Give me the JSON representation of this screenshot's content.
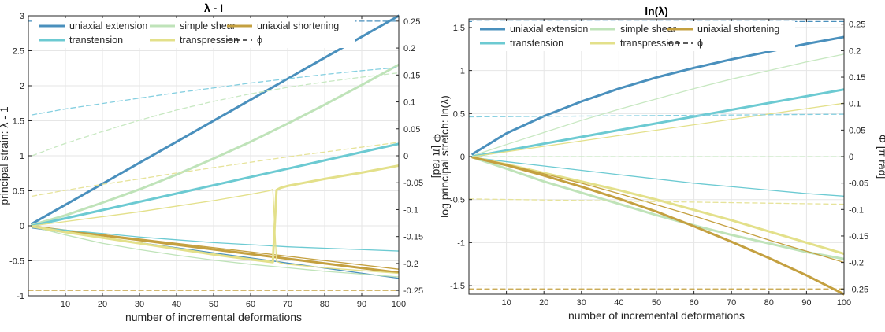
{
  "chart_data": [
    {
      "type": "line",
      "title": "λ - I",
      "xlabel": "number of incremental deformations",
      "ylabel": "principal strain: λ - 1",
      "y2label": "Φ [π rad]",
      "xlim": [
        0,
        100
      ],
      "ylim": [
        -1,
        3
      ],
      "y2lim": [
        -0.26,
        0.26
      ],
      "xticks": [
        10,
        20,
        30,
        40,
        50,
        60,
        70,
        80,
        90,
        100
      ],
      "yticks": [
        -1,
        -0.5,
        0,
        0.5,
        1,
        1.5,
        2,
        2.5,
        3
      ],
      "yticklabels": [
        "-1",
        "-0.5",
        "0",
        "0.5",
        "1",
        "1.5",
        "2",
        "2.5",
        "3"
      ],
      "y2ticks": [
        -0.25,
        -0.2,
        -0.15,
        -0.1,
        -0.05,
        0,
        0.05,
        0.1,
        0.15,
        0.2,
        0.25
      ],
      "y2ticklabels": [
        "-0.25",
        "-0.2",
        "-0.15",
        "-0.1",
        "-0.05",
        "0",
        "0.05",
        "0.1",
        "0.15",
        "0.2",
        "0.25"
      ],
      "grid": true,
      "legend_position": "top",
      "series": [
        {
          "name": "uniaxial extension",
          "color": "#4a90bd",
          "style": "solid",
          "width": 3,
          "axis": "left",
          "x": [
            1,
            100
          ],
          "y": [
            0.03,
            3.0
          ]
        },
        {
          "name": "",
          "color": "#4a90bd",
          "style": "solid",
          "width": 1.3,
          "axis": "left",
          "x": [
            1,
            100
          ],
          "y": [
            -0.03,
            -0.75
          ]
        },
        {
          "name": "simple shear",
          "color": "#bfe3b9",
          "style": "solid",
          "width": 3,
          "axis": "left",
          "x": [
            1,
            10,
            20,
            30,
            40,
            50,
            60,
            70,
            80,
            90,
            100
          ],
          "y": [
            0.01,
            0.15,
            0.33,
            0.52,
            0.73,
            0.96,
            1.2,
            1.46,
            1.73,
            2.01,
            2.3
          ]
        },
        {
          "name": "",
          "color": "#bfe3b9",
          "style": "solid",
          "width": 1.3,
          "axis": "left",
          "x": [
            1,
            10,
            20,
            30,
            40,
            50,
            60,
            70,
            80,
            90,
            100
          ],
          "y": [
            -0.01,
            -0.13,
            -0.25,
            -0.34,
            -0.42,
            -0.49,
            -0.55,
            -0.6,
            -0.65,
            -0.69,
            -0.73
          ]
        },
        {
          "name": "uniaxial shortening",
          "color": "#c4a040",
          "style": "solid",
          "width": 3,
          "axis": "left",
          "x": [
            1,
            100
          ],
          "y": [
            -0.01,
            -0.67
          ]
        },
        {
          "name": "",
          "color": "#c4a040",
          "style": "solid",
          "width": 1.3,
          "axis": "left",
          "x": [
            1,
            100
          ],
          "y": [
            -0.01,
            -0.62
          ]
        },
        {
          "name": "transtension",
          "color": "#6ccad2",
          "style": "solid",
          "width": 3,
          "axis": "left",
          "x": [
            1,
            100
          ],
          "y": [
            0.0,
            1.17
          ]
        },
        {
          "name": "",
          "color": "#6ccad2",
          "style": "solid",
          "width": 1.3,
          "axis": "left",
          "x": [
            1,
            10,
            20,
            30,
            40,
            50,
            60,
            70,
            80,
            90,
            100
          ],
          "y": [
            -0.02,
            -0.06,
            -0.11,
            -0.16,
            -0.2,
            -0.24,
            -0.27,
            -0.3,
            -0.32,
            -0.34,
            -0.36
          ]
        },
        {
          "name": "transpression",
          "color": "#e3e08a",
          "style": "solid",
          "width": 3,
          "axis": "left",
          "x": [
            1,
            10,
            20,
            30,
            40,
            50,
            60,
            66,
            67,
            68,
            70,
            80,
            90,
            100
          ],
          "y": [
            -0.01,
            -0.09,
            -0.17,
            -0.25,
            -0.33,
            -0.41,
            -0.48,
            -0.52,
            0.51,
            0.54,
            0.57,
            0.67,
            0.76,
            0.86
          ]
        },
        {
          "name": "",
          "color": "#e3e08a",
          "style": "solid",
          "width": 1.3,
          "axis": "left",
          "x": [
            1,
            10,
            20,
            30,
            40,
            50,
            60,
            65,
            66,
            67,
            68,
            70,
            80,
            90,
            100
          ],
          "y": [
            0.0,
            0.06,
            0.13,
            0.2,
            0.28,
            0.36,
            0.45,
            0.5,
            0.52,
            -0.51,
            -0.53,
            -0.55,
            -0.6,
            -0.64,
            -0.68
          ]
        },
        {
          "name": "",
          "color": "#4a90bd",
          "style": "dashed",
          "width": 1.3,
          "axis": "right",
          "x": [
            0,
            100
          ],
          "y": [
            0.25,
            0.25
          ]
        },
        {
          "name": "",
          "color": "#c4a040",
          "style": "dashed",
          "width": 1.3,
          "axis": "right",
          "x": [
            0,
            100
          ],
          "y": [
            -0.25,
            -0.25
          ]
        },
        {
          "name": "",
          "color": "#85cfe0",
          "style": "dashed",
          "width": 1.3,
          "axis": "right",
          "x": [
            1,
            10,
            20,
            30,
            40,
            50,
            60,
            70,
            80,
            90,
            100
          ],
          "y": [
            0.076,
            0.087,
            0.097,
            0.107,
            0.117,
            0.126,
            0.135,
            0.143,
            0.151,
            0.158,
            0.164
          ]
        },
        {
          "name": "",
          "color": "#c8e8c2",
          "style": "dashed",
          "width": 1.3,
          "axis": "right",
          "x": [
            1,
            10,
            20,
            30,
            40,
            50,
            60,
            70,
            80,
            90,
            100
          ],
          "y": [
            0.0,
            0.023,
            0.045,
            0.066,
            0.085,
            0.101,
            0.115,
            0.127,
            0.137,
            0.146,
            0.154
          ]
        },
        {
          "name": "",
          "color": "#e6e39a",
          "style": "dashed",
          "width": 1.3,
          "axis": "right",
          "x": [
            1,
            10,
            20,
            30,
            40,
            50,
            60,
            70,
            80,
            90,
            100
          ],
          "y": [
            -0.075,
            -0.064,
            -0.053,
            -0.043,
            -0.032,
            -0.022,
            -0.012,
            -0.002,
            0.007,
            0.016,
            0.025
          ]
        }
      ],
      "legend": [
        {
          "label": "uniaxial extension",
          "color": "#4a90bd",
          "style": "solid"
        },
        {
          "label": "simple shear",
          "color": "#bfe3b9",
          "style": "solid"
        },
        {
          "label": "uniaxial shortening",
          "color": "#c4a040",
          "style": "solid"
        },
        {
          "label": "transtension",
          "color": "#6ccad2",
          "style": "solid"
        },
        {
          "label": "transpression",
          "color": "#e3e08a",
          "style": "solid"
        },
        {
          "label": "ϕ",
          "color": "#262626",
          "style": "dashed"
        }
      ]
    },
    {
      "type": "line",
      "title": "ln(λ)",
      "xlabel": "number of incremental deformations",
      "ylabel": "log principal stretch: ln(λ)",
      "y2label": "Φ [π rad]",
      "xlim": [
        0,
        100
      ],
      "ylim": [
        -1.6,
        1.6
      ],
      "y2lim": [
        -0.26,
        0.26
      ],
      "xticks": [
        10,
        20,
        30,
        40,
        50,
        60,
        70,
        80,
        90,
        100
      ],
      "yticks": [
        -1.5,
        -1,
        -0.5,
        0,
        0.5,
        1,
        1.5
      ],
      "yticklabels": [
        "-1.5",
        "-1",
        "-0.5",
        "0",
        "0.5",
        "1",
        "1.5"
      ],
      "y2ticks": [
        -0.25,
        -0.2,
        -0.15,
        -0.1,
        -0.05,
        0,
        0.05,
        0.1,
        0.15,
        0.2,
        0.25
      ],
      "y2ticklabels": [
        "-0.25",
        "-0.2",
        "-0.15",
        "-0.1",
        "-0.05",
        "0",
        "0.05",
        "0.1",
        "0.15",
        "0.2",
        "0.25"
      ],
      "grid": true,
      "legend_position": "top",
      "series": [
        {
          "name": "uniaxial extension",
          "color": "#4a90bd",
          "style": "solid",
          "width": 3,
          "axis": "left",
          "x": [
            1,
            10,
            20,
            30,
            40,
            50,
            60,
            70,
            80,
            90,
            100
          ],
          "y": [
            0.03,
            0.27,
            0.47,
            0.64,
            0.79,
            0.92,
            1.03,
            1.13,
            1.22,
            1.31,
            1.39
          ]
        },
        {
          "name": "simple shear",
          "color": "#c8e8c2",
          "style": "solid",
          "width": 1.3,
          "axis": "left",
          "x": [
            1,
            10,
            20,
            30,
            40,
            50,
            60,
            70,
            80,
            90,
            100
          ],
          "y": [
            0.01,
            0.14,
            0.28,
            0.42,
            0.55,
            0.67,
            0.79,
            0.9,
            1.0,
            1.1,
            1.19
          ]
        },
        {
          "name": "",
          "color": "#bfe3b9",
          "style": "solid",
          "width": 3,
          "axis": "left",
          "x": [
            1,
            10,
            20,
            30,
            40,
            50,
            60,
            70,
            80,
            90,
            100
          ],
          "y": [
            -0.01,
            -0.14,
            -0.29,
            -0.42,
            -0.55,
            -0.68,
            -0.8,
            -0.91,
            -1.01,
            -1.11,
            -1.19
          ]
        },
        {
          "name": "transtension",
          "color": "#6ccad2",
          "style": "solid",
          "width": 3,
          "axis": "left",
          "x": [
            1,
            100
          ],
          "y": [
            0.0,
            0.78
          ]
        },
        {
          "name": "",
          "color": "#6ccad2",
          "style": "solid",
          "width": 1.3,
          "axis": "left",
          "x": [
            1,
            10,
            20,
            30,
            40,
            50,
            60,
            70,
            80,
            90,
            100
          ],
          "y": [
            -0.01,
            -0.06,
            -0.11,
            -0.16,
            -0.21,
            -0.26,
            -0.31,
            -0.35,
            -0.39,
            -0.43,
            -0.46
          ]
        },
        {
          "name": "transpression",
          "color": "#e3e08a",
          "style": "solid",
          "width": 1.3,
          "axis": "left",
          "x": [
            1,
            100
          ],
          "y": [
            0.0,
            0.62
          ]
        },
        {
          "name": "",
          "color": "#e3e08a",
          "style": "solid",
          "width": 3,
          "axis": "left",
          "x": [
            1,
            10,
            20,
            30,
            40,
            50,
            60,
            70,
            80,
            90,
            100
          ],
          "y": [
            -0.01,
            -0.09,
            -0.19,
            -0.29,
            -0.39,
            -0.5,
            -0.62,
            -0.74,
            -0.87,
            -1.0,
            -1.13
          ]
        },
        {
          "name": "uniaxial shortening",
          "color": "#c4a040",
          "style": "solid",
          "width": 3,
          "axis": "left",
          "x": [
            1,
            10,
            20,
            30,
            40,
            50,
            60,
            70,
            80,
            90,
            100
          ],
          "y": [
            -0.01,
            -0.1,
            -0.22,
            -0.35,
            -0.49,
            -0.64,
            -0.81,
            -0.99,
            -1.18,
            -1.38,
            -1.6
          ]
        },
        {
          "name": "",
          "color": "#c4a040",
          "style": "solid",
          "width": 1.3,
          "axis": "left",
          "x": [
            1,
            10,
            20,
            30,
            40,
            50,
            60,
            70,
            80,
            90,
            100
          ],
          "y": [
            -0.01,
            -0.09,
            -0.2,
            -0.31,
            -0.43,
            -0.56,
            -0.69,
            -0.83,
            -0.97,
            -1.1,
            -1.23
          ]
        },
        {
          "name": "",
          "color": "#4a90bd",
          "style": "dashed",
          "width": 1.3,
          "axis": "right",
          "x": [
            0,
            100
          ],
          "y": [
            0.255,
            0.255
          ]
        },
        {
          "name": "",
          "color": "#c4a040",
          "style": "dashed",
          "width": 1.3,
          "axis": "right",
          "x": [
            0,
            100
          ],
          "y": [
            -0.25,
            -0.25
          ]
        },
        {
          "name": "",
          "color": "#85cfe0",
          "style": "dashed",
          "width": 1.3,
          "axis": "right",
          "x": [
            0,
            100
          ],
          "y": [
            0.075,
            0.08
          ]
        },
        {
          "name": "",
          "color": "#c8e8c2",
          "style": "dashed",
          "width": 1.3,
          "axis": "right",
          "x": [
            0,
            100
          ],
          "y": [
            0.0,
            0.0
          ]
        },
        {
          "name": "",
          "color": "#e6e39a",
          "style": "dashed",
          "width": 1.3,
          "axis": "right",
          "x": [
            0,
            100
          ],
          "y": [
            -0.08,
            -0.09
          ]
        }
      ],
      "legend": [
        {
          "label": "uniaxial extension",
          "color": "#4a90bd",
          "style": "solid"
        },
        {
          "label": "simple shear",
          "color": "#bfe3b9",
          "style": "solid"
        },
        {
          "label": "uniaxial shortening",
          "color": "#c4a040",
          "style": "solid"
        },
        {
          "label": "transtension",
          "color": "#6ccad2",
          "style": "solid"
        },
        {
          "label": "transpression",
          "color": "#e3e08a",
          "style": "solid"
        },
        {
          "label": "ϕ",
          "color": "#262626",
          "style": "dashed"
        }
      ]
    }
  ]
}
